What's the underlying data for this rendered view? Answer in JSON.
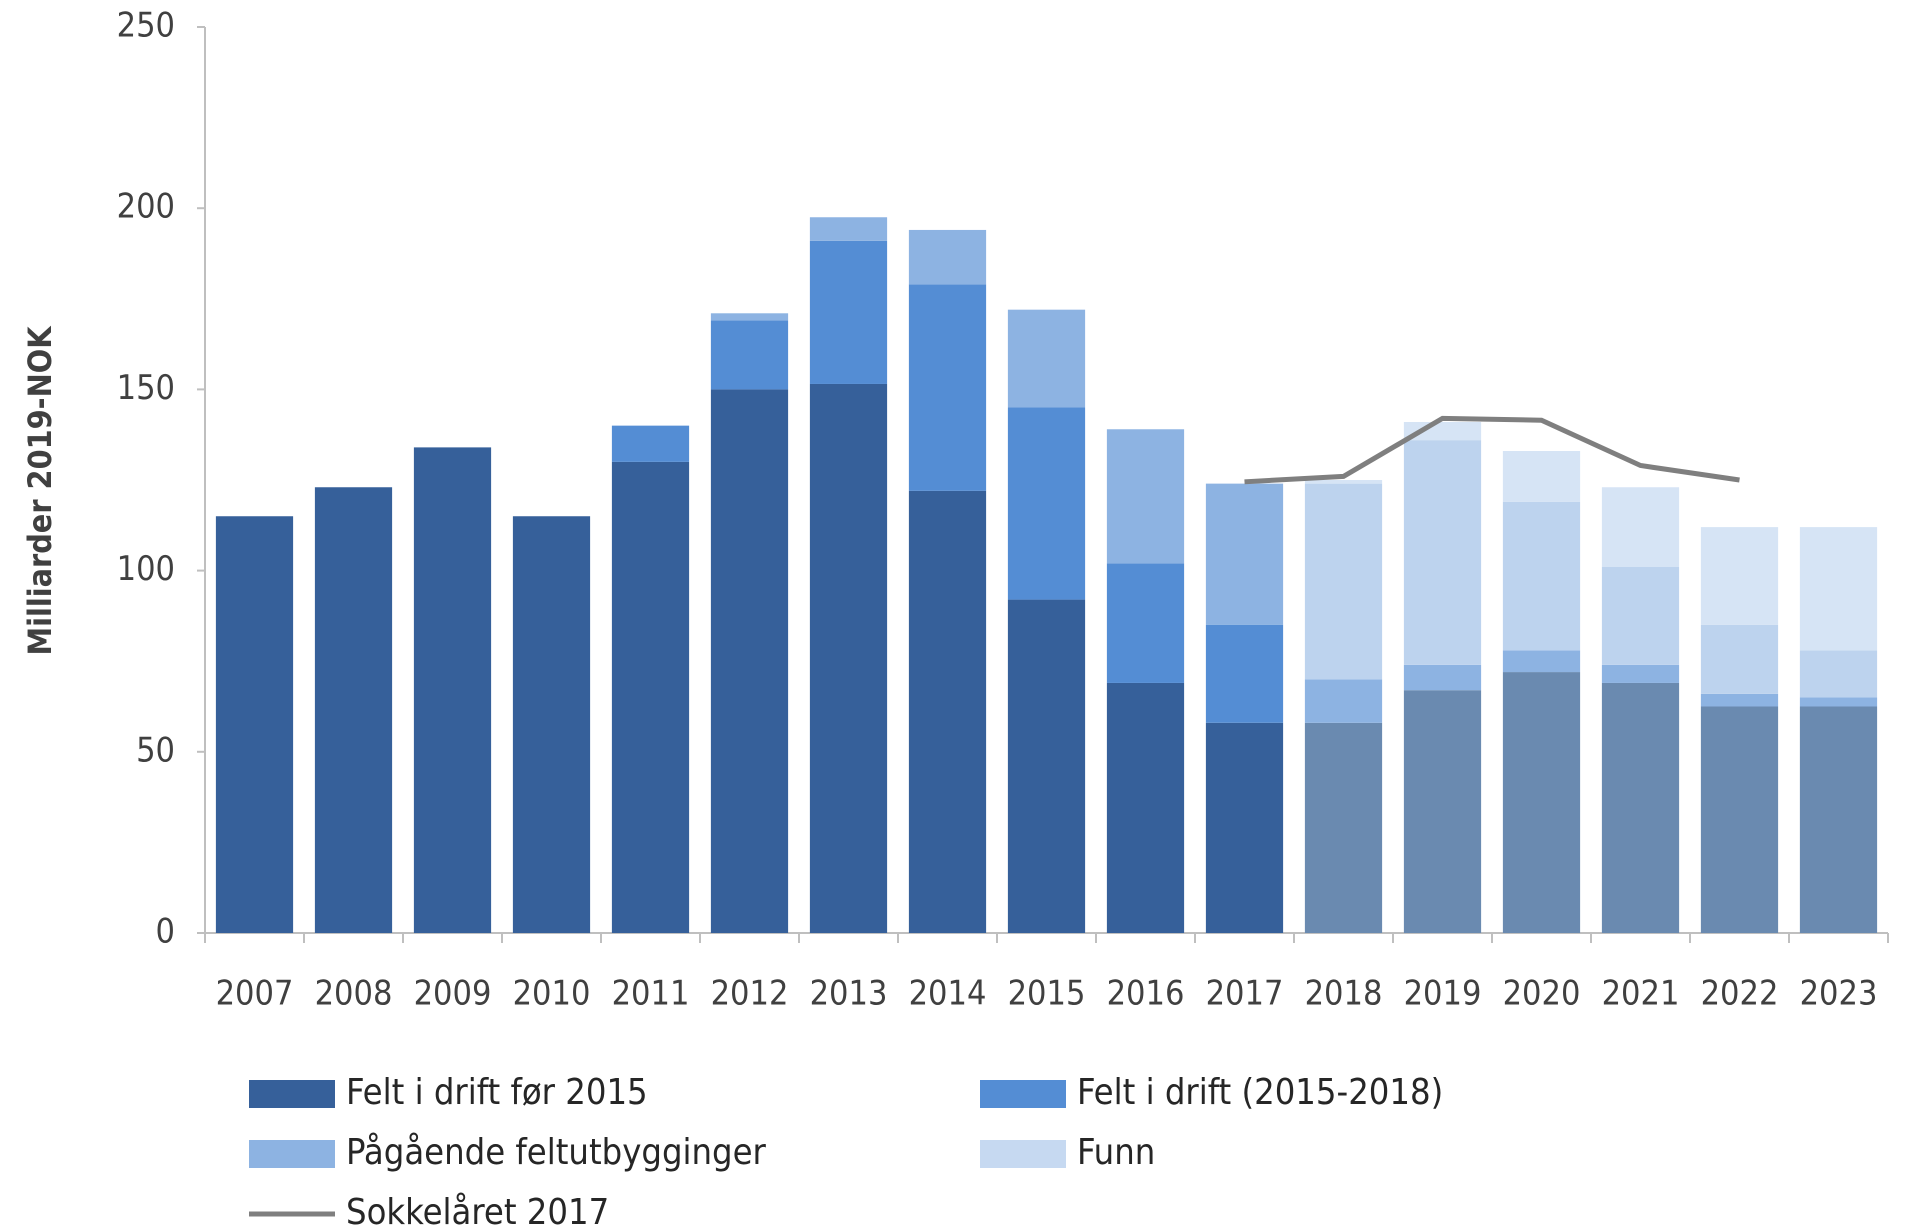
{
  "chart_data": {
    "type": "stacked-bar-line",
    "y_label": "Milliarder 2019-NOK",
    "categories": [
      "2007",
      "2008",
      "2009",
      "2010",
      "2011",
      "2012",
      "2013",
      "2014",
      "2015",
      "2016",
      "2017",
      "2018",
      "2019",
      "2020",
      "2021",
      "2022",
      "2023"
    ],
    "ylim": [
      0,
      250
    ],
    "yticks": [
      0,
      50,
      100,
      150,
      200,
      250
    ],
    "grid": false,
    "series": [
      {
        "name": "Felt i drift før 2015",
        "color": "#36609a",
        "colors": [
          "#36609a",
          "#36609a",
          "#36609a",
          "#36609a",
          "#36609a",
          "#36609a",
          "#36609a",
          "#36609a",
          "#36609a",
          "#36609a",
          "#36609a",
          "#6a8ab0",
          "#6a8ab0",
          "#6a8ab0",
          "#6a8ab0",
          "#6a8ab0",
          "#6a8ab0"
        ],
        "values": [
          115,
          123,
          134,
          115,
          130,
          150,
          151.5,
          122,
          92,
          69,
          58,
          58,
          67,
          72,
          69,
          62.5,
          62.5
        ]
      },
      {
        "name": "Felt i drift (2015-2018)",
        "color": "#548dd4",
        "colors": [
          "#548dd4",
          "#548dd4",
          "#548dd4",
          "#548dd4",
          "#548dd4",
          "#548dd4",
          "#548dd4",
          "#548dd4",
          "#548dd4",
          "#548dd4",
          "#548dd4",
          "#8db3e2",
          "#8db3e2",
          "#8db3e2",
          "#8db3e2",
          "#8db3e2",
          "#8db3e2"
        ],
        "values": [
          0,
          0,
          0,
          0,
          10,
          19,
          39.5,
          57,
          53,
          33,
          27,
          12,
          7,
          6,
          5,
          3.5,
          2.5
        ]
      },
      {
        "name": "Pågående feltutbygginger",
        "color": "#8db3e2",
        "colors": [
          "#8db3e2",
          "#8db3e2",
          "#8db3e2",
          "#8db3e2",
          "#8db3e2",
          "#8db3e2",
          "#8db3e2",
          "#8db3e2",
          "#8db3e2",
          "#8db3e2",
          "#8db3e2",
          "#bdd3ee",
          "#bdd3ee",
          "#bdd3ee",
          "#bdd3ee",
          "#bdd3ee",
          "#bdd3ee"
        ],
        "values": [
          0,
          0,
          0,
          0,
          0,
          2,
          6.5,
          15,
          27,
          37,
          39,
          54,
          62,
          41,
          27,
          19,
          13
        ]
      },
      {
        "name": "Funn",
        "color": "#c6d9f1",
        "colors": [
          "#c6d9f1",
          "#c6d9f1",
          "#c6d9f1",
          "#c6d9f1",
          "#c6d9f1",
          "#c6d9f1",
          "#c6d9f1",
          "#c6d9f1",
          "#c6d9f1",
          "#c6d9f1",
          "#c6d9f1",
          "#d6e4f5",
          "#d6e4f5",
          "#d6e4f5",
          "#d6e4f5",
          "#d6e4f5",
          "#d6e4f5"
        ],
        "values": [
          0,
          0,
          0,
          0,
          0,
          0,
          0,
          0,
          0,
          0,
          0,
          1,
          5,
          14,
          22,
          27,
          34
        ]
      },
      {
        "name": "Sokkelåret 2017",
        "color": "#7f7f7f",
        "kind": "line",
        "values": [
          null,
          null,
          null,
          null,
          null,
          null,
          null,
          null,
          null,
          null,
          124.5,
          126,
          142,
          141.5,
          129,
          125,
          null
        ]
      }
    ]
  }
}
